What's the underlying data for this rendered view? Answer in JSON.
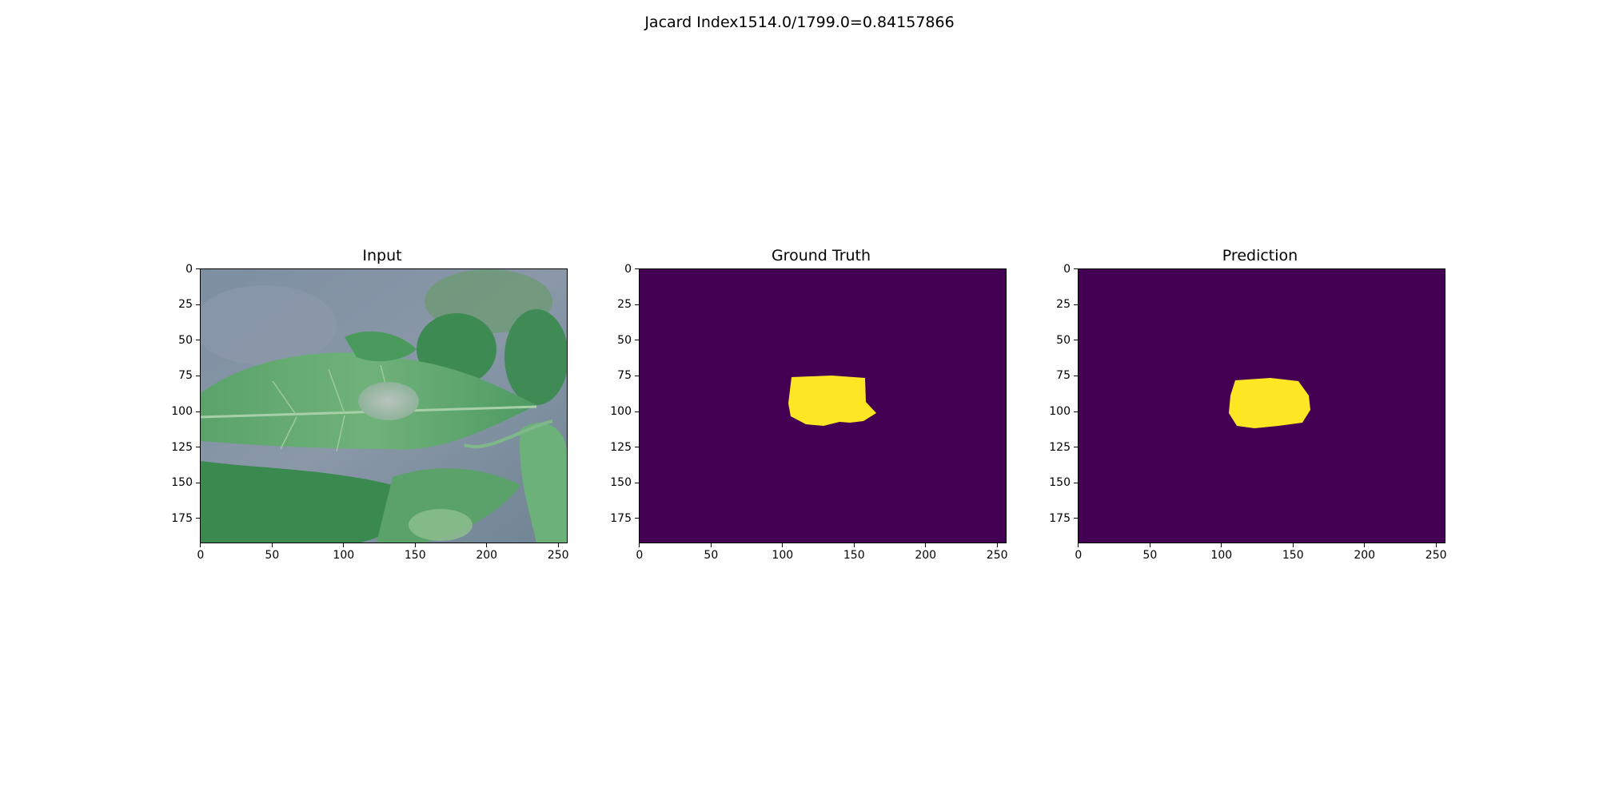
{
  "figure": {
    "suptitle": "Jacard Index1514.0/1799.0=0.84157866"
  },
  "panels": [
    {
      "id": "input",
      "title": "Input",
      "content": "leaf-photo"
    },
    {
      "id": "ground-truth",
      "title": "Ground Truth",
      "content": "mask"
    },
    {
      "id": "prediction",
      "title": "Prediction",
      "content": "mask"
    }
  ],
  "axes": {
    "xlim": [
      0,
      256
    ],
    "ylim": [
      0,
      192
    ],
    "xticks": [
      "0",
      "50",
      "100",
      "150",
      "200",
      "250"
    ],
    "yticks": [
      "0",
      "25",
      "50",
      "75",
      "100",
      "125",
      "150",
      "175"
    ]
  },
  "colors": {
    "mask_background": "#440154",
    "mask_foreground": "#fde725"
  }
}
